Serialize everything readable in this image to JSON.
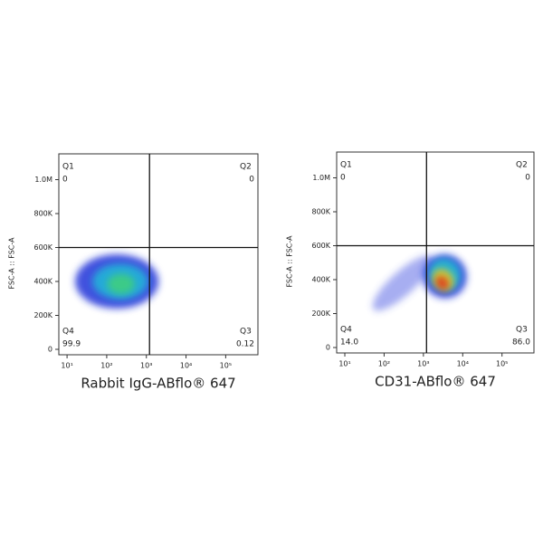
{
  "chart_data": [
    {
      "type": "density-scatter",
      "x_label": "Rabbit IgG-ABflo® 647",
      "y_label": "FSC-A :: FSC-A",
      "x_scale": "log",
      "xlim": [
        6.2,
        650000
      ],
      "xticks": [
        {
          "value": 10,
          "label": "10¹"
        },
        {
          "value": 100,
          "label": "10²"
        },
        {
          "value": 1000,
          "label": "10³"
        },
        {
          "value": 10000,
          "label": "10⁴"
        },
        {
          "value": 100000,
          "label": "10⁵"
        }
      ],
      "ylim": [
        -32000,
        1152000
      ],
      "yticks": [
        0,
        {
          "value": 200000,
          "label": "200K"
        },
        {
          "value": 400000,
          "label": "400K"
        },
        {
          "value": 600000,
          "label": "600K"
        },
        {
          "value": 800000,
          "label": "800K"
        },
        {
          "value": 1000000,
          "label": "1.0M"
        }
      ],
      "gate_x": 1200,
      "gate_y": 600000,
      "quadrant_names": [
        "Q1",
        "Q2",
        "Q3",
        "Q4"
      ],
      "quadrant_values": [
        0,
        0,
        0.12,
        99.9
      ],
      "density": [
        {
          "x": 180,
          "y": 400000,
          "x_decades": 1.05,
          "y_spread": 160000,
          "color": "#2233d8"
        },
        {
          "x": 220,
          "y": 400000,
          "x_decades": 0.7,
          "y_spread": 105000,
          "color": "#22b8d8"
        },
        {
          "x": 230,
          "y": 385000,
          "x_decades": 0.35,
          "y_spread": 60000,
          "color": "#40d07a"
        }
      ]
    },
    {
      "type": "density-scatter",
      "x_label": "CD31-ABflo® 647",
      "y_label": "FSC-A :: FSC-A",
      "x_scale": "log",
      "xlim": [
        6.2,
        650000
      ],
      "xticks": [
        {
          "value": 10,
          "label": "10¹"
        },
        {
          "value": 100,
          "label": "10²"
        },
        {
          "value": 1000,
          "label": "10³"
        },
        {
          "value": 10000,
          "label": "10⁴"
        },
        {
          "value": 100000,
          "label": "10⁵"
        }
      ],
      "ylim": [
        -32000,
        1152000
      ],
      "yticks": [
        0,
        {
          "value": 200000,
          "label": "200K"
        },
        {
          "value": 400000,
          "label": "400K"
        },
        {
          "value": 600000,
          "label": "600K"
        },
        {
          "value": 800000,
          "label": "800K"
        },
        {
          "value": 1000000,
          "label": "1.0M"
        }
      ],
      "gate_x": 1200,
      "gate_y": 600000,
      "quadrant_names": [
        "Q1",
        "Q2",
        "Q3",
        "Q4"
      ],
      "quadrant_values": [
        0,
        0,
        86,
        14
      ],
      "quadrant_value_labels": [
        "0",
        "0",
        "86.0",
        "14.0"
      ],
      "density": [
        {
          "x": 300,
          "y": 380000,
          "x_decades": 1.0,
          "y_spread": 70000,
          "color": "#3a4be0"
        },
        {
          "x": 3500,
          "y": 420000,
          "x_decades": 0.55,
          "y_spread": 130000,
          "color": "#2233d8"
        },
        {
          "x": 3500,
          "y": 430000,
          "x_decades": 0.4,
          "y_spread": 100000,
          "color": "#22c0d0"
        },
        {
          "x": 3200,
          "y": 400000,
          "x_decades": 0.25,
          "y_spread": 70000,
          "color": "#e8d020"
        },
        {
          "x": 3000,
          "y": 380000,
          "x_decades": 0.15,
          "y_spread": 45000,
          "color": "#e0301a"
        }
      ]
    }
  ]
}
